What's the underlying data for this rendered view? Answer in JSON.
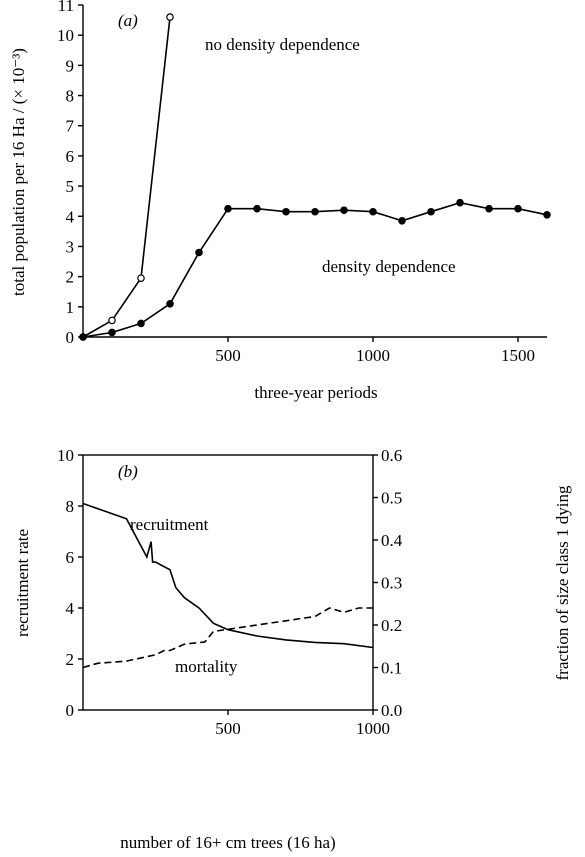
{
  "chart_data": [
    {
      "type": "line",
      "annotations": [
        "(a)",
        "no density dependence",
        "density dependence"
      ],
      "y_label": "total population per 16 Ha / (× 10⁻³)",
      "x_label": "three-year periods",
      "xlim": [
        0,
        1600
      ],
      "xticks": [
        500,
        1000,
        1500
      ],
      "ylim": [
        0,
        11
      ],
      "yticks": [
        0,
        1,
        2,
        3,
        4,
        5,
        6,
        7,
        8,
        9,
        10,
        11
      ],
      "series": [
        {
          "marker": "open",
          "color": "#000000",
          "x": [
            0,
            100,
            200,
            300
          ],
          "values": [
            0,
            0.55,
            1.95,
            10.6
          ]
        },
        {
          "marker": "filled",
          "color": "#000000",
          "x": [
            0,
            100,
            200,
            300,
            400,
            500,
            600,
            700,
            800,
            900,
            1000,
            1100,
            1200,
            1300,
            1400,
            1500,
            1600
          ],
          "values": [
            0,
            0.15,
            0.45,
            1.1,
            2.8,
            4.25,
            4.25,
            4.15,
            4.15,
            4.2,
            4.15,
            3.85,
            4.15,
            4.45,
            4.25,
            4.25,
            4.05
          ]
        }
      ]
    },
    {
      "type": "line",
      "annotations": [
        "(b)",
        "recruitment",
        "mortality"
      ],
      "y_label": "recruitment rate",
      "y2_label": "fraction of size class 1 dying",
      "x_label": "number of 16+ cm trees (16 ha)",
      "xlim": [
        0,
        1000
      ],
      "xticks": [
        500,
        1000
      ],
      "ylim": [
        0,
        10
      ],
      "yticks": [
        0,
        2,
        4,
        6,
        8,
        10
      ],
      "y2lim": [
        0,
        0.6
      ],
      "y2ticks": [
        {
          "value": 0,
          "label": "0.0"
        },
        0.1,
        0.2,
        0.3,
        0.4,
        0.5,
        0.6
      ],
      "series": [
        {
          "line_style": "solid",
          "color": "#000000",
          "x": [
            0,
            150,
            220,
            235,
            240,
            250,
            300,
            320,
            350,
            400,
            450,
            500,
            600,
            700,
            800,
            900,
            1000
          ],
          "values": [
            8.1,
            7.5,
            6.0,
            6.6,
            5.8,
            5.8,
            5.5,
            4.8,
            4.4,
            4.0,
            3.4,
            3.15,
            2.9,
            2.75,
            2.65,
            2.6,
            2.45
          ]
        },
        {
          "line_style": "dashed",
          "color": "#000000",
          "axis": "y2",
          "x": [
            0,
            50,
            150,
            250,
            280,
            300,
            350,
            420,
            450,
            500,
            600,
            700,
            750,
            800,
            850,
            900,
            950,
            1000
          ],
          "values": [
            0.1,
            0.11,
            0.115,
            0.13,
            0.14,
            0.14,
            0.155,
            0.16,
            0.185,
            0.19,
            0.2,
            0.21,
            0.215,
            0.22,
            0.24,
            0.23,
            0.24,
            0.24
          ]
        }
      ]
    }
  ]
}
